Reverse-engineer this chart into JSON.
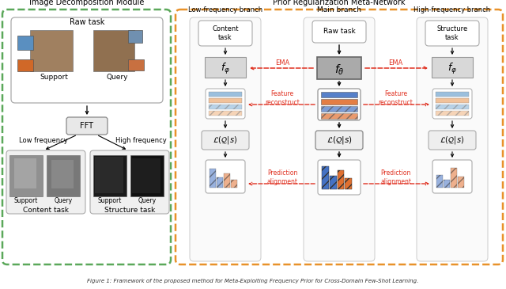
{
  "bg_color": "#ffffff",
  "green_border": "#5ba85a",
  "orange_border": "#e8922a",
  "blue_color": "#4472c4",
  "orange_color": "#e07030",
  "light_blue": "#8ab4d8",
  "light_orange": "#f0b888",
  "gray_dark": "#888888",
  "gray_mid": "#aaaaaa",
  "gray_fill": "#cccccc",
  "gray_light": "#dddddd",
  "red_arrow": "#e03020",
  "left_title": "Image Decomposition Module",
  "right_title": "Prior Regularization Meta-Network",
  "branch_low": "Low-frequency branch",
  "branch_main": "Main branch",
  "branch_high": "High-frequency branch",
  "label_raw": "Raw task",
  "label_content": "Content\ntask",
  "label_structure": "Structure\ntask",
  "label_fft": "FFT",
  "label_low_freq": "Low frequency",
  "label_high_freq": "High frequency",
  "label_content_task": "Content task",
  "label_structure_task": "Structure task",
  "label_support": "Support",
  "label_query": "Query",
  "label_ema": "EMA",
  "label_feature": "Feature\nreconstruct",
  "label_predict": "Prediction\nalignment",
  "caption": "Figure 1: Framework of the proposed method for Meta-Exploiting Frequency Prior for Cross-Domain Few-Shot Learning."
}
